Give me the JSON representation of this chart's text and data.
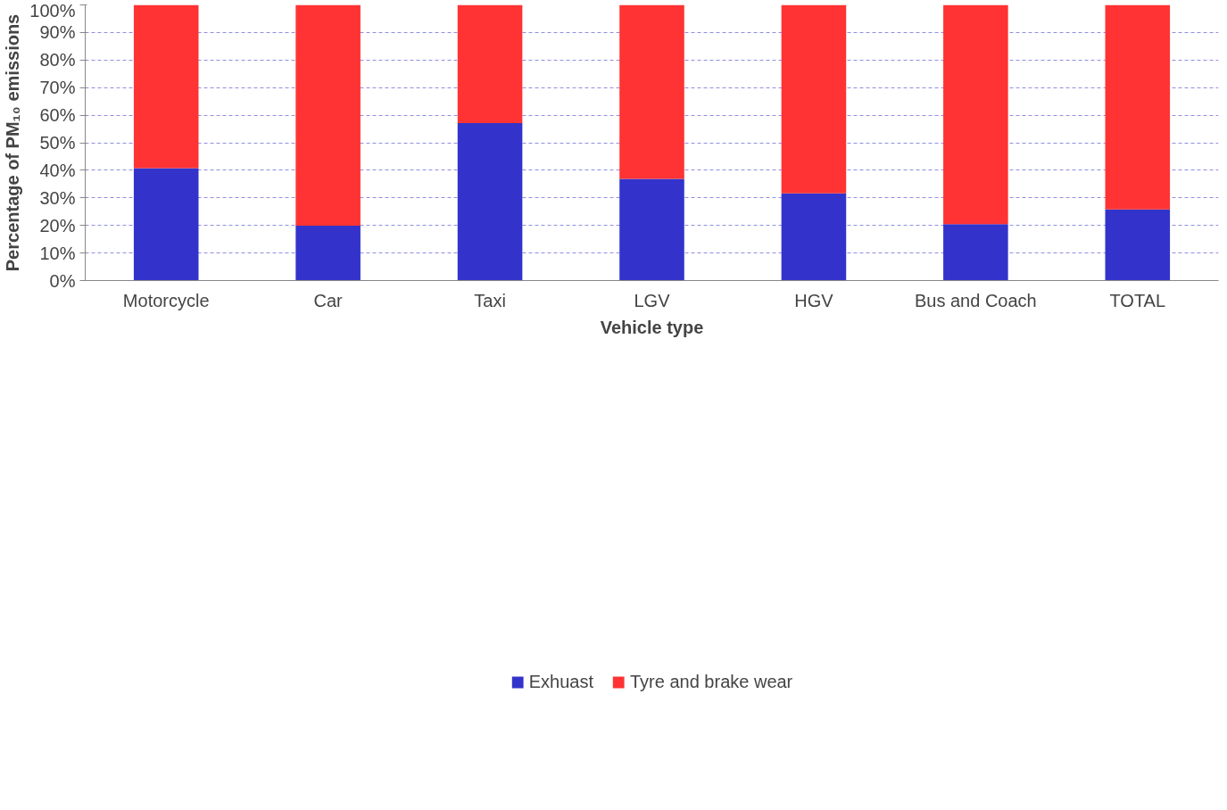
{
  "chart_data": {
    "type": "bar",
    "stacked": true,
    "xlabel": "Vehicle type",
    "ylabel": "Percentage of PM₁₀ emissions",
    "categories": [
      "Motorcycle",
      "Car",
      "Taxi",
      "LGV",
      "HGV",
      "Bus and Coach",
      "TOTAL"
    ],
    "series": [
      {
        "name": "Exhuast",
        "color": "#3333cc",
        "values": [
          40.8,
          19.9,
          57.1,
          36.9,
          31.6,
          20.5,
          25.8
        ]
      },
      {
        "name": "Tyre and brake wear",
        "color": "#ff3333",
        "values": [
          59.2,
          80.1,
          42.9,
          63.1,
          68.4,
          79.5,
          74.2
        ]
      }
    ],
    "ylim": [
      0,
      100
    ],
    "yticks": [
      {
        "value": 0,
        "label": "0%"
      },
      {
        "value": 10,
        "label": "10%"
      },
      {
        "value": 20,
        "label": "20%"
      },
      {
        "value": 30,
        "label": "30%"
      },
      {
        "value": 40,
        "label": "40%"
      },
      {
        "value": 50,
        "label": "50%"
      },
      {
        "value": 60,
        "label": "60%"
      },
      {
        "value": 70,
        "label": "70%"
      },
      {
        "value": 80,
        "label": "80%"
      },
      {
        "value": 90,
        "label": "90%"
      },
      {
        "value": 100,
        "label": "100%"
      }
    ],
    "grid": "y",
    "legend": "bottom"
  }
}
